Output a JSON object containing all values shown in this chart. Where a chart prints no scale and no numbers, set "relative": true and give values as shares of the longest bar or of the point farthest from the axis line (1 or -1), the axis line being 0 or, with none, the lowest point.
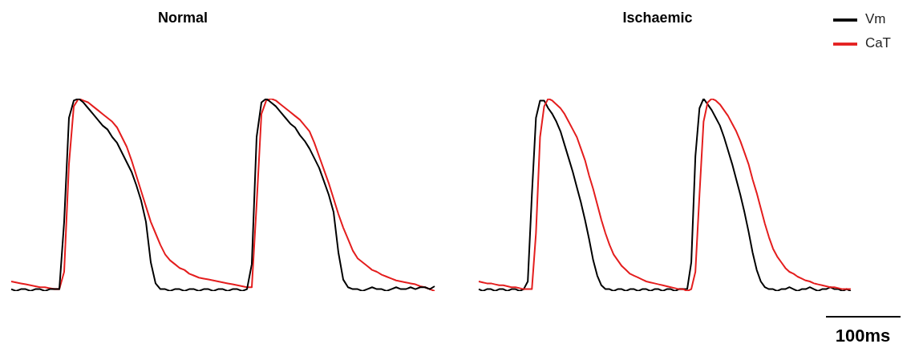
{
  "chart_data": [
    {
      "type": "line",
      "title": "Normal",
      "relative": true,
      "legend": false,
      "marker": "none",
      "line_style": "solid",
      "categories": [
        null,
        null,
        null,
        null,
        null,
        null,
        null,
        null,
        null,
        null,
        null,
        null,
        null,
        null,
        null,
        null,
        null,
        null,
        null,
        null,
        null,
        null,
        null,
        null,
        null,
        null,
        null,
        null,
        null,
        null,
        null,
        null,
        null,
        null,
        null,
        null,
        null,
        null,
        null,
        null,
        null,
        null,
        null,
        null,
        null,
        null,
        null,
        null,
        null,
        null,
        null,
        null,
        null,
        null,
        null,
        null,
        null,
        null,
        null,
        null,
        null,
        null,
        null,
        null,
        null,
        null,
        null,
        null,
        null,
        null,
        null,
        null,
        null,
        null,
        null,
        null,
        null,
        null,
        null,
        null,
        null,
        null,
        null,
        null,
        null,
        null,
        null,
        null,
        null
      ],
      "series": [
        {
          "color": "#e41e1e",
          "values": [
            0.05,
            0.045,
            0.04,
            0.035,
            0.03,
            0.025,
            0.02,
            0.02,
            0.015,
            0.01,
            0.01,
            0.1,
            0.66,
            0.96,
            1.0,
            0.99,
            0.98,
            0.96,
            0.94,
            0.92,
            0.9,
            0.88,
            0.85,
            0.8,
            0.75,
            0.68,
            0.6,
            0.52,
            0.44,
            0.36,
            0.3,
            0.24,
            0.19,
            0.16,
            0.14,
            0.12,
            0.11,
            0.09,
            0.08,
            0.07,
            0.065,
            0.06,
            0.055,
            0.05,
            0.045,
            0.04,
            0.035,
            0.03,
            0.025,
            0.02,
            0.02,
            0.45,
            0.92,
            0.99,
            1.0,
            0.99,
            0.97,
            0.95,
            0.93,
            0.91,
            0.89,
            0.86,
            0.83,
            0.77,
            0.7,
            0.63,
            0.56,
            0.48,
            0.4,
            0.33,
            0.27,
            0.21,
            0.17,
            0.15,
            0.13,
            0.11,
            0.1,
            0.085,
            0.075,
            0.065,
            0.055,
            0.05,
            0.045,
            0.04,
            0.035,
            0.025,
            0.02,
            0.01,
            0.0
          ]
        },
        {
          "color": "#000000",
          "values": [
            0.01,
            0.0,
            0.01,
            0.01,
            0.0,
            0.01,
            0.01,
            0.0,
            0.01,
            0.01,
            0.01,
            0.36,
            0.9,
            0.99,
            1.0,
            0.98,
            0.95,
            0.92,
            0.89,
            0.86,
            0.84,
            0.8,
            0.77,
            0.72,
            0.67,
            0.62,
            0.55,
            0.47,
            0.36,
            0.15,
            0.04,
            0.01,
            0.01,
            0.0,
            0.01,
            0.01,
            0.0,
            0.01,
            0.01,
            0.0,
            0.01,
            0.01,
            0.0,
            0.01,
            0.01,
            0.0,
            0.01,
            0.01,
            0.0,
            0.01,
            0.14,
            0.8,
            0.98,
            1.0,
            0.98,
            0.96,
            0.93,
            0.9,
            0.87,
            0.85,
            0.81,
            0.78,
            0.74,
            0.69,
            0.64,
            0.57,
            0.5,
            0.41,
            0.2,
            0.06,
            0.02,
            0.01,
            0.01,
            0.0,
            0.01,
            0.02,
            0.01,
            0.01,
            0.0,
            0.01,
            0.02,
            0.01,
            0.01,
            0.02,
            0.01,
            0.02,
            0.02,
            0.01,
            0.025
          ]
        }
      ]
    },
    {
      "type": "line",
      "title": "Ischaemic",
      "relative": true,
      "legend": "top right",
      "marker": "none",
      "line_style": "solid",
      "annotations": [
        "100ms"
      ],
      "categories": [
        null,
        null,
        null,
        null,
        null,
        null,
        null,
        null,
        null,
        null,
        null,
        null,
        null,
        null,
        null,
        null,
        null,
        null,
        null,
        null,
        null,
        null,
        null,
        null,
        null,
        null,
        null,
        null,
        null,
        null,
        null,
        null,
        null,
        null,
        null,
        null,
        null,
        null,
        null,
        null,
        null,
        null,
        null,
        null,
        null,
        null,
        null,
        null,
        null,
        null,
        null,
        null,
        null,
        null,
        null,
        null,
        null,
        null,
        null,
        null,
        null,
        null,
        null,
        null,
        null,
        null,
        null,
        null,
        null,
        null,
        null,
        null,
        null,
        null,
        null,
        null,
        null,
        null,
        null,
        null,
        null,
        null,
        null,
        null,
        null,
        null,
        null,
        null,
        null,
        null,
        null,
        null
      ],
      "series": [
        {
          "name": "Vm",
          "color": "#000000",
          "values": [
            0.01,
            0.0,
            0.01,
            0.01,
            0.0,
            0.01,
            0.01,
            0.0,
            0.01,
            0.01,
            0.0,
            0.01,
            0.05,
            0.5,
            0.9,
            0.99,
            0.99,
            0.95,
            0.92,
            0.88,
            0.83,
            0.76,
            0.69,
            0.62,
            0.54,
            0.46,
            0.37,
            0.27,
            0.16,
            0.08,
            0.03,
            0.01,
            0.01,
            0.0,
            0.01,
            0.01,
            0.0,
            0.01,
            0.01,
            0.0,
            0.01,
            0.01,
            0.0,
            0.01,
            0.01,
            0.0,
            0.01,
            0.01,
            0.0,
            0.01,
            0.01,
            0.01,
            0.15,
            0.7,
            0.95,
            1.0,
            0.97,
            0.94,
            0.9,
            0.86,
            0.8,
            0.73,
            0.66,
            0.58,
            0.5,
            0.41,
            0.31,
            0.2,
            0.11,
            0.05,
            0.02,
            0.01,
            0.01,
            0.0,
            0.01,
            0.01,
            0.02,
            0.01,
            0.0,
            0.01,
            0.01,
            0.02,
            0.01,
            0.0,
            0.01,
            0.01,
            0.02,
            0.01,
            0.01,
            0.0,
            0.01,
            0.0
          ]
        },
        {
          "name": "CaT",
          "color": "#e41e1e",
          "values": [
            0.05,
            0.045,
            0.04,
            0.04,
            0.035,
            0.03,
            0.03,
            0.025,
            0.02,
            0.02,
            0.015,
            0.01,
            0.01,
            0.01,
            0.3,
            0.8,
            0.96,
            1.0,
            0.99,
            0.97,
            0.95,
            0.92,
            0.88,
            0.84,
            0.8,
            0.74,
            0.68,
            0.6,
            0.53,
            0.45,
            0.37,
            0.3,
            0.24,
            0.19,
            0.16,
            0.13,
            0.11,
            0.09,
            0.08,
            0.07,
            0.06,
            0.05,
            0.045,
            0.04,
            0.035,
            0.03,
            0.025,
            0.02,
            0.015,
            0.01,
            0.01,
            0.0,
            0.01,
            0.1,
            0.5,
            0.88,
            0.98,
            1.0,
            0.99,
            0.97,
            0.94,
            0.91,
            0.87,
            0.83,
            0.78,
            0.72,
            0.66,
            0.58,
            0.51,
            0.43,
            0.35,
            0.28,
            0.22,
            0.18,
            0.15,
            0.12,
            0.1,
            0.09,
            0.075,
            0.065,
            0.055,
            0.05,
            0.04,
            0.035,
            0.03,
            0.025,
            0.02,
            0.02,
            0.015,
            0.01,
            0.01,
            0.01
          ]
        }
      ]
    }
  ]
}
